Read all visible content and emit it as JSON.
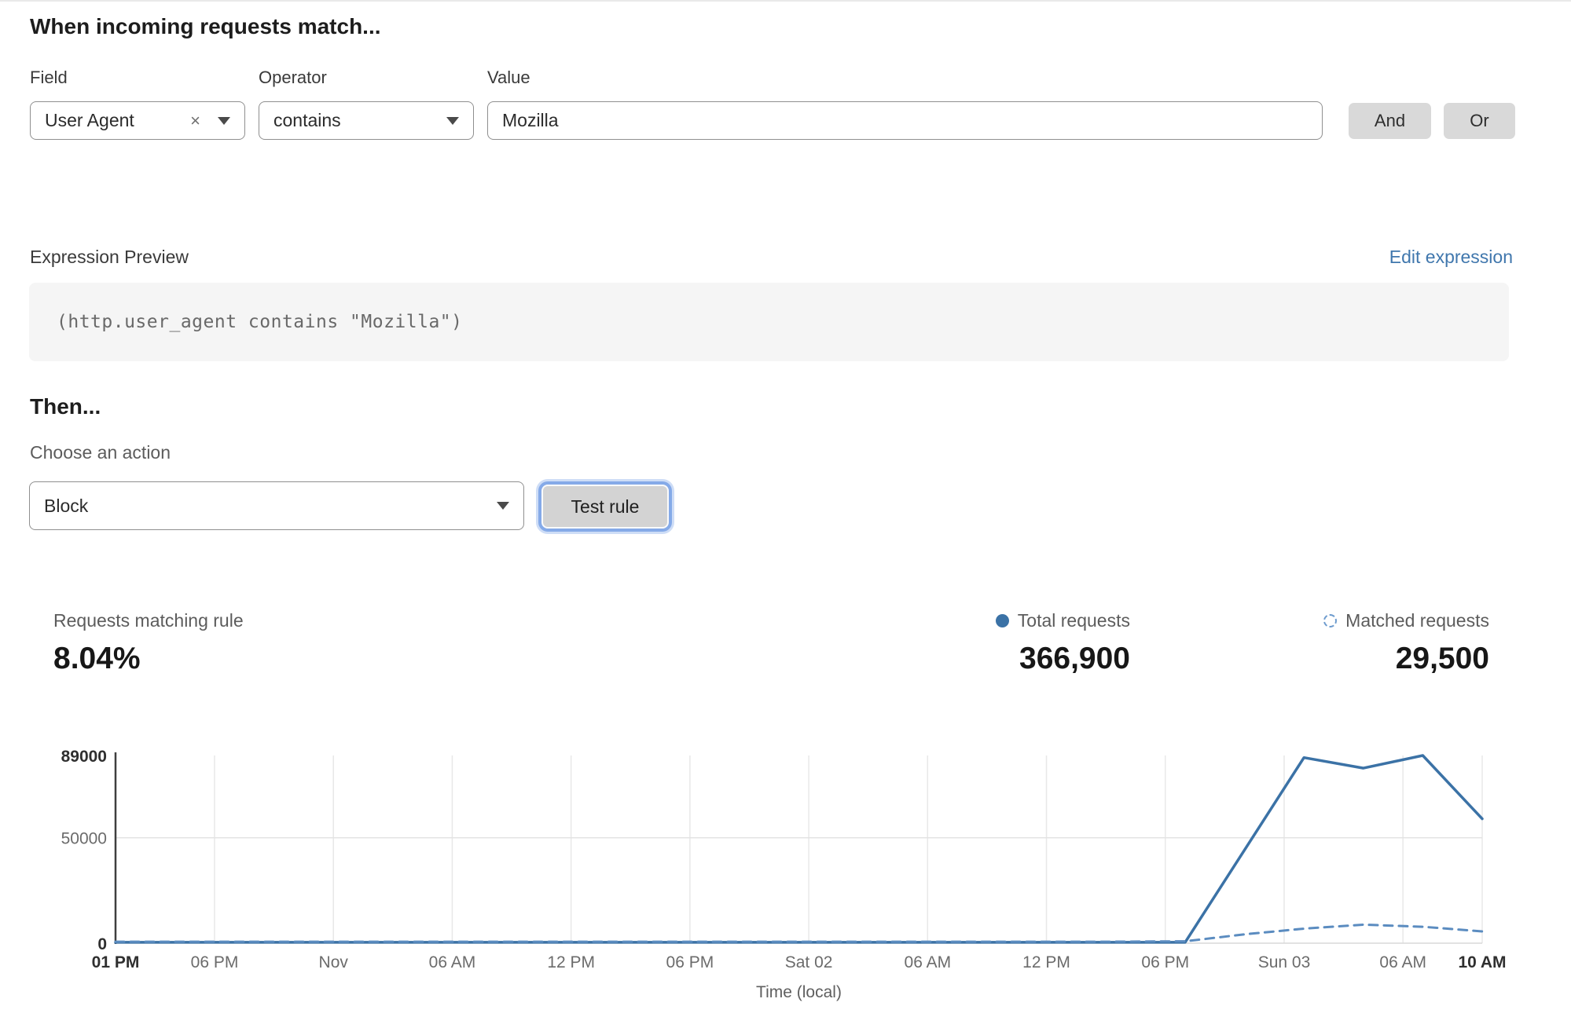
{
  "header": {
    "title": "When incoming requests match..."
  },
  "rule_builder": {
    "field": {
      "label": "Field",
      "value": "User Agent",
      "clear_icon": "×"
    },
    "operator": {
      "label": "Operator",
      "value": "contains"
    },
    "value": {
      "label": "Value",
      "value": "Mozilla"
    },
    "and_label": "And",
    "or_label": "Or"
  },
  "expression": {
    "preview_label": "Expression Preview",
    "edit_link": "Edit expression",
    "code": "(http.user_agent contains \"Mozilla\")"
  },
  "action": {
    "heading": "Then...",
    "choose_label": "Choose an action",
    "value": "Block",
    "test_button": "Test rule"
  },
  "stats": {
    "matching": {
      "label": "Requests matching rule",
      "value": "8.04%"
    },
    "total": {
      "label": "Total requests",
      "value": "366,900"
    },
    "matched": {
      "label": "Matched requests",
      "value": "29,500"
    }
  },
  "colors": {
    "total_line": "#3b72a6",
    "matched_line": "#5b8cc0",
    "link_blue": "#4077ad"
  },
  "chart_data": {
    "type": "line",
    "title": "",
    "xlabel": "Time (local)",
    "ylabel": "",
    "x_unit": "hours_from_start",
    "xlim": [
      0,
      69
    ],
    "ylim": [
      0,
      89000
    ],
    "grid": true,
    "legend_position": "above-chart-right",
    "y_ticks": [
      {
        "value": 0,
        "label": "0",
        "bold": true
      },
      {
        "value": 50000,
        "label": "50000",
        "bold": false
      },
      {
        "value": 89000,
        "label": "89000",
        "bold": true
      }
    ],
    "x_ticks": [
      {
        "h": 0,
        "label": "01 PM",
        "bold": true
      },
      {
        "h": 5,
        "label": "06 PM",
        "bold": false
      },
      {
        "h": 11,
        "label": "Nov",
        "bold": false
      },
      {
        "h": 17,
        "label": "06 AM",
        "bold": false
      },
      {
        "h": 23,
        "label": "12 PM",
        "bold": false
      },
      {
        "h": 29,
        "label": "06 PM",
        "bold": false
      },
      {
        "h": 35,
        "label": "Sat 02",
        "bold": false
      },
      {
        "h": 41,
        "label": "06 AM",
        "bold": false
      },
      {
        "h": 47,
        "label": "12 PM",
        "bold": false
      },
      {
        "h": 53,
        "label": "06 PM",
        "bold": false
      },
      {
        "h": 59,
        "label": "Sun 03",
        "bold": false
      },
      {
        "h": 65,
        "label": "06 AM",
        "bold": false
      },
      {
        "h": 69,
        "label": "10 AM",
        "bold": true
      }
    ],
    "series": [
      {
        "name": "Total requests",
        "style": "solid",
        "color": "#3b72a6",
        "stroke_width": 3.5,
        "points": [
          [
            0,
            400
          ],
          [
            10,
            400
          ],
          [
            20,
            400
          ],
          [
            30,
            400
          ],
          [
            40,
            400
          ],
          [
            50,
            400
          ],
          [
            54,
            400
          ],
          [
            60,
            88000
          ],
          [
            63,
            83000
          ],
          [
            66,
            89000
          ],
          [
            69,
            59000
          ]
        ]
      },
      {
        "name": "Matched requests",
        "style": "dashed",
        "color": "#5b8cc0",
        "stroke_width": 3,
        "points": [
          [
            0,
            700
          ],
          [
            10,
            700
          ],
          [
            20,
            700
          ],
          [
            30,
            700
          ],
          [
            40,
            700
          ],
          [
            50,
            700
          ],
          [
            54,
            900
          ],
          [
            57,
            4200
          ],
          [
            60,
            6900
          ],
          [
            63,
            8800
          ],
          [
            66,
            7800
          ],
          [
            69,
            5600
          ]
        ]
      }
    ]
  }
}
